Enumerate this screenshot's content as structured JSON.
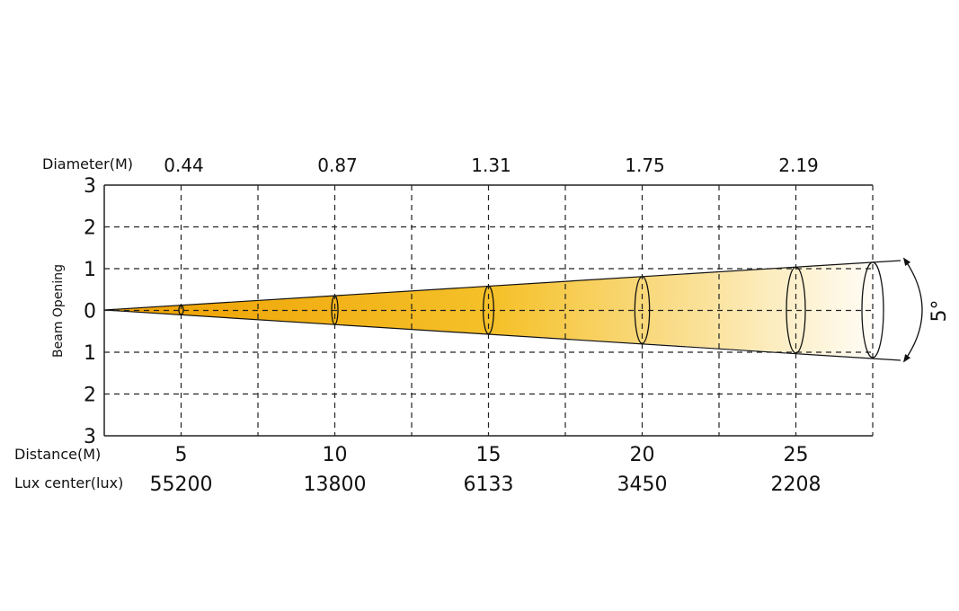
{
  "labels": {
    "diameter": "Diameter(M)",
    "distance": "Distance(M)",
    "lux": "Lux center(lux)",
    "y_axis": "Beam Opening",
    "angle": "5°"
  },
  "y_ticks": [
    "3",
    "2",
    "1",
    "0",
    "1",
    "2",
    "3"
  ],
  "columns": [
    {
      "distance": "5",
      "diameter": "0.44",
      "lux": "55200"
    },
    {
      "distance": "10",
      "diameter": "0.87",
      "lux": "13800"
    },
    {
      "distance": "15",
      "diameter": "1.31",
      "lux": "6133"
    },
    {
      "distance": "20",
      "diameter": "1.75",
      "lux": "3450"
    },
    {
      "distance": "25",
      "diameter": "2.19",
      "lux": "2208"
    }
  ],
  "colors": {
    "beam_start": "#ee9f00",
    "beam_mid": "#f5c12a",
    "beam_end": "#ffffff",
    "line": "#111111"
  }
}
